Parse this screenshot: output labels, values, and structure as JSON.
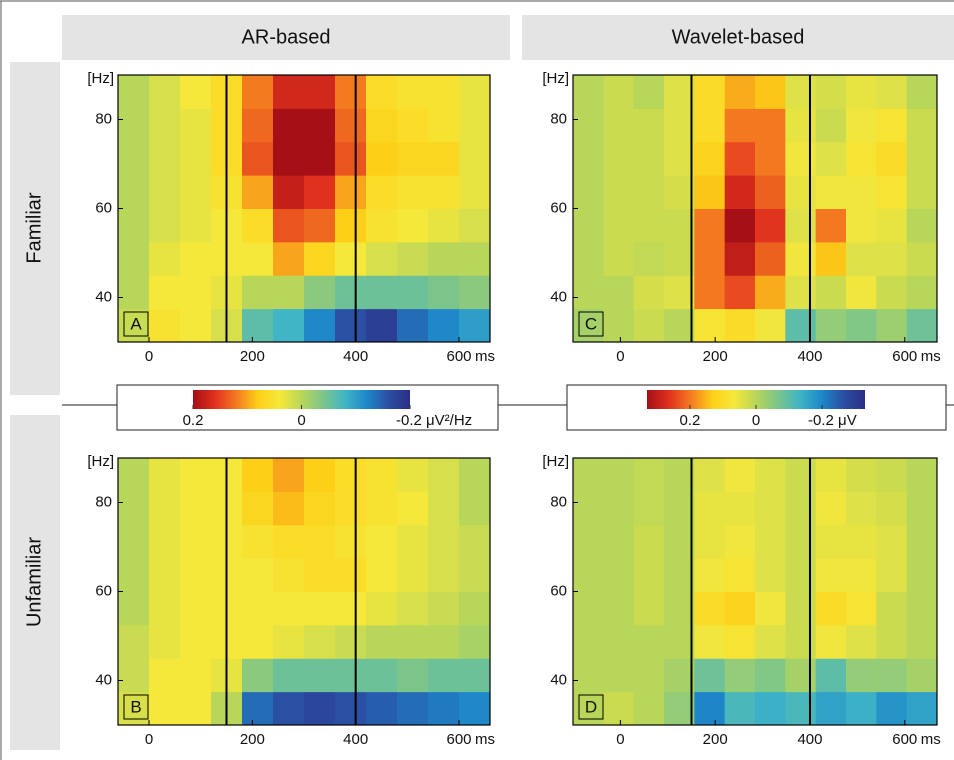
{
  "column_headers": [
    "AR-based",
    "Wavelet-based"
  ],
  "row_headers": [
    "Familiar",
    "Unfamiliar"
  ],
  "colormap": [
    "#a50f15",
    "#e0301e",
    "#f47a20",
    "#fdd017",
    "#f6e83a",
    "#b8d65a",
    "#7cc58a",
    "#3fb5c6",
    "#1e88c9",
    "#2a4fa3",
    "#2b2f85"
  ],
  "colorbars": [
    {
      "lim": [
        0.2,
        -0.2
      ],
      "ticks": [
        0.2,
        0,
        {
          "value": -0.2,
          "label": "-0.2 μV²/Hz"
        }
      ]
    },
    {
      "lim": [
        0.33,
        -0.33
      ],
      "ticks": [
        0.2,
        0,
        {
          "value": -0.2,
          "label": "-0.2 μV"
        }
      ]
    }
  ],
  "chart_data": [
    {
      "type": "heatmap",
      "panel_label": "A",
      "colorbar": 0,
      "x_unit": "ms",
      "y_unit": "[Hz]",
      "xlim": [
        -60,
        660
      ],
      "ylim": [
        30,
        90
      ],
      "xticks": [
        0,
        200,
        400,
        600
      ],
      "yticks": [
        40,
        60,
        80
      ],
      "markers_x": [
        150,
        400
      ],
      "x_bins": [
        -60,
        0,
        60,
        120,
        180,
        240,
        300,
        360,
        420,
        480,
        540,
        600,
        660
      ],
      "y_bins": [
        30,
        37.5,
        45,
        52.5,
        60,
        67.5,
        75,
        82.5,
        90
      ],
      "values": [
        [
          0.01,
          0.05,
          0.04,
          0.02,
          -0.06,
          -0.08,
          -0.12,
          -0.16,
          -0.18,
          -0.14,
          -0.12,
          -0.1
        ],
        [
          0.0,
          0.04,
          0.04,
          0.03,
          0.0,
          0.0,
          -0.03,
          -0.05,
          -0.05,
          -0.05,
          -0.04,
          -0.03
        ],
        [
          0.0,
          0.03,
          0.04,
          0.04,
          0.04,
          0.1,
          0.07,
          0.04,
          0.02,
          0.01,
          0.0,
          0.0
        ],
        [
          0.0,
          0.02,
          0.03,
          0.04,
          0.06,
          0.14,
          0.13,
          0.08,
          0.05,
          0.04,
          0.03,
          0.02
        ],
        [
          0.0,
          0.02,
          0.03,
          0.05,
          0.1,
          0.18,
          0.16,
          0.1,
          0.06,
          0.05,
          0.05,
          0.03
        ],
        [
          0.0,
          0.02,
          0.03,
          0.06,
          0.14,
          0.24,
          0.21,
          0.14,
          0.08,
          0.07,
          0.07,
          0.03
        ],
        [
          0.0,
          0.02,
          0.03,
          0.06,
          0.13,
          0.2,
          0.2,
          0.13,
          0.07,
          0.06,
          0.05,
          0.03
        ],
        [
          0.0,
          0.02,
          0.04,
          0.06,
          0.12,
          0.17,
          0.17,
          0.12,
          0.06,
          0.05,
          0.05,
          0.03
        ]
      ]
    },
    {
      "type": "heatmap",
      "panel_label": "B",
      "colorbar": 0,
      "x_unit": "ms",
      "y_unit": "[Hz]",
      "xlim": [
        -60,
        660
      ],
      "ylim": [
        30,
        90
      ],
      "xticks": [
        0,
        200,
        400,
        600
      ],
      "yticks": [
        40,
        60,
        80
      ],
      "markers_x": [
        150,
        400
      ],
      "x_bins": [
        -60,
        0,
        60,
        120,
        180,
        240,
        300,
        360,
        420,
        480,
        540,
        600,
        660
      ],
      "y_bins": [
        30,
        37.5,
        45,
        52.5,
        60,
        67.5,
        75,
        82.5,
        90
      ],
      "values": [
        [
          0.02,
          0.04,
          0.04,
          0.0,
          -0.14,
          -0.16,
          -0.17,
          -0.16,
          -0.15,
          -0.14,
          -0.13,
          -0.12
        ],
        [
          0.01,
          0.04,
          0.04,
          0.03,
          -0.03,
          -0.05,
          -0.05,
          -0.05,
          -0.05,
          -0.04,
          -0.05,
          -0.05
        ],
        [
          0.01,
          0.03,
          0.04,
          0.04,
          0.04,
          0.03,
          0.02,
          0.01,
          0.0,
          0.0,
          0.0,
          -0.01
        ],
        [
          0.0,
          0.03,
          0.04,
          0.04,
          0.04,
          0.04,
          0.04,
          0.04,
          0.03,
          0.02,
          0.01,
          0.0
        ],
        [
          0.0,
          0.03,
          0.04,
          0.04,
          0.04,
          0.05,
          0.06,
          0.06,
          0.04,
          0.03,
          0.02,
          0.01
        ],
        [
          0.0,
          0.03,
          0.04,
          0.04,
          0.05,
          0.06,
          0.06,
          0.05,
          0.04,
          0.03,
          0.02,
          0.01
        ],
        [
          0.0,
          0.03,
          0.04,
          0.04,
          0.07,
          0.09,
          0.07,
          0.06,
          0.05,
          0.04,
          0.02,
          0.0
        ],
        [
          0.0,
          0.03,
          0.04,
          0.04,
          0.08,
          0.1,
          0.08,
          0.06,
          0.05,
          0.03,
          0.02,
          0.0
        ]
      ]
    },
    {
      "type": "heatmap",
      "panel_label": "C",
      "colorbar": 1,
      "x_unit": "ms",
      "y_unit": "[Hz]",
      "xlim": [
        -100,
        668
      ],
      "ylim": [
        30,
        90
      ],
      "xticks": [
        0,
        200,
        400,
        600
      ],
      "yticks": [
        40,
        60,
        80
      ],
      "markers_x": [
        150,
        400
      ],
      "x_bins": [
        -100,
        -36,
        28,
        92,
        156,
        220,
        284,
        348,
        412,
        476,
        540,
        604,
        668
      ],
      "y_bins": [
        30,
        37.5,
        45,
        52.5,
        60,
        67.5,
        75,
        82.5,
        90
      ],
      "values": [
        [
          -0.02,
          0.0,
          0.02,
          0.0,
          0.08,
          0.1,
          0.06,
          -0.1,
          -0.04,
          -0.06,
          -0.03,
          -0.08
        ],
        [
          0.0,
          0.0,
          0.03,
          0.04,
          0.2,
          0.24,
          0.16,
          0.04,
          0.02,
          0.06,
          0.02,
          0.0
        ],
        [
          0.0,
          0.02,
          0.01,
          0.02,
          0.2,
          0.3,
          0.22,
          0.06,
          0.14,
          0.04,
          0.04,
          0.02
        ],
        [
          0.0,
          0.02,
          0.02,
          0.02,
          0.2,
          0.33,
          0.26,
          0.04,
          0.2,
          0.06,
          0.05,
          0.0
        ],
        [
          0.0,
          0.02,
          0.02,
          0.03,
          0.14,
          0.28,
          0.22,
          0.05,
          0.06,
          0.06,
          0.08,
          0.02
        ],
        [
          0.0,
          0.02,
          0.02,
          0.04,
          0.12,
          0.24,
          0.2,
          0.06,
          0.04,
          0.08,
          0.1,
          0.02
        ],
        [
          0.0,
          0.02,
          0.02,
          0.04,
          0.1,
          0.2,
          0.2,
          0.05,
          0.02,
          0.06,
          0.08,
          0.02
        ],
        [
          0.0,
          0.02,
          0.0,
          0.04,
          0.1,
          0.16,
          0.14,
          0.04,
          0.03,
          0.05,
          0.04,
          0.0
        ]
      ]
    },
    {
      "type": "heatmap",
      "panel_label": "D",
      "colorbar": 1,
      "x_unit": "ms",
      "y_unit": "[Hz]",
      "xlim": [
        -100,
        668
      ],
      "ylim": [
        30,
        90
      ],
      "xticks": [
        0,
        200,
        400,
        600
      ],
      "yticks": [
        40,
        60,
        80
      ],
      "markers_x": [
        150,
        400
      ],
      "x_bins": [
        -100,
        -36,
        28,
        92,
        156,
        220,
        284,
        348,
        412,
        476,
        540,
        604,
        668
      ],
      "y_bins": [
        30,
        37.5,
        45,
        52.5,
        60,
        67.5,
        75,
        82.5,
        90
      ],
      "values": [
        [
          0.0,
          0.02,
          0.0,
          -0.04,
          -0.2,
          -0.12,
          -0.14,
          -0.12,
          -0.16,
          -0.14,
          -0.18,
          -0.16
        ],
        [
          0.0,
          0.0,
          0.0,
          -0.02,
          -0.08,
          -0.04,
          -0.06,
          -0.02,
          -0.1,
          -0.04,
          -0.04,
          -0.02
        ],
        [
          0.0,
          0.0,
          0.0,
          0.0,
          0.06,
          0.08,
          0.04,
          0.02,
          0.06,
          0.04,
          0.02,
          0.0
        ],
        [
          0.0,
          0.0,
          0.02,
          0.0,
          0.1,
          0.12,
          0.06,
          0.02,
          0.1,
          0.08,
          0.02,
          0.0
        ],
        [
          0.0,
          0.0,
          0.02,
          0.0,
          0.06,
          0.08,
          0.04,
          0.02,
          0.06,
          0.06,
          0.04,
          0.0
        ],
        [
          0.0,
          0.0,
          0.02,
          0.0,
          0.05,
          0.06,
          0.04,
          0.02,
          0.05,
          0.05,
          0.04,
          0.0
        ],
        [
          0.0,
          0.0,
          0.01,
          0.0,
          0.05,
          0.05,
          0.04,
          0.02,
          0.06,
          0.04,
          0.03,
          0.0
        ],
        [
          0.0,
          0.0,
          0.01,
          0.0,
          0.04,
          0.06,
          0.04,
          0.02,
          0.05,
          0.03,
          0.02,
          0.0
        ]
      ]
    }
  ]
}
